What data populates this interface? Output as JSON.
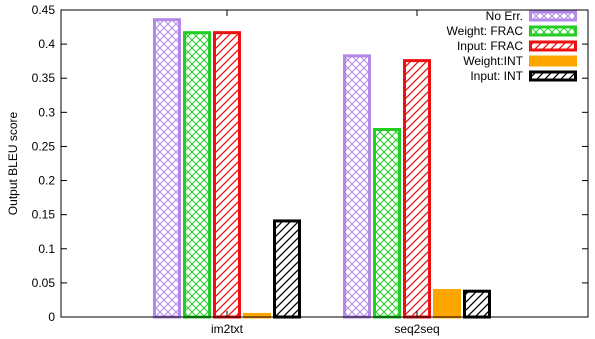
{
  "chart_data": {
    "type": "bar",
    "categories": [
      "im2txt",
      "seq2seq"
    ],
    "ylabel": "Output BLEU score",
    "xlabel": "",
    "ylim": [
      0,
      0.45
    ],
    "yticks": [
      "0",
      "0.05",
      "0.1",
      "0.15",
      "0.2",
      "0.25",
      "0.3",
      "0.35",
      "0.4",
      "0.45"
    ],
    "grid": false,
    "legend_position": "top-right",
    "series": [
      {
        "name": "No Err.",
        "values": [
          0.438,
          0.385
        ],
        "color": "#b388ea",
        "pattern": "crosshatch"
      },
      {
        "name": "Weight: FRAC",
        "values": [
          0.419,
          0.277
        ],
        "color": "#22cc22",
        "pattern": "crosshatch"
      },
      {
        "name": "Input: FRAC",
        "values": [
          0.419,
          0.378
        ],
        "color": "#ee1111",
        "pattern": "diagonal"
      },
      {
        "name": "Weight:INT",
        "values": [
          0.006,
          0.041
        ],
        "color": "#ffa500",
        "pattern": "solid"
      },
      {
        "name": "Input: INT",
        "values": [
          0.143,
          0.04
        ],
        "color": "#000000",
        "pattern": "diagonal"
      }
    ]
  }
}
